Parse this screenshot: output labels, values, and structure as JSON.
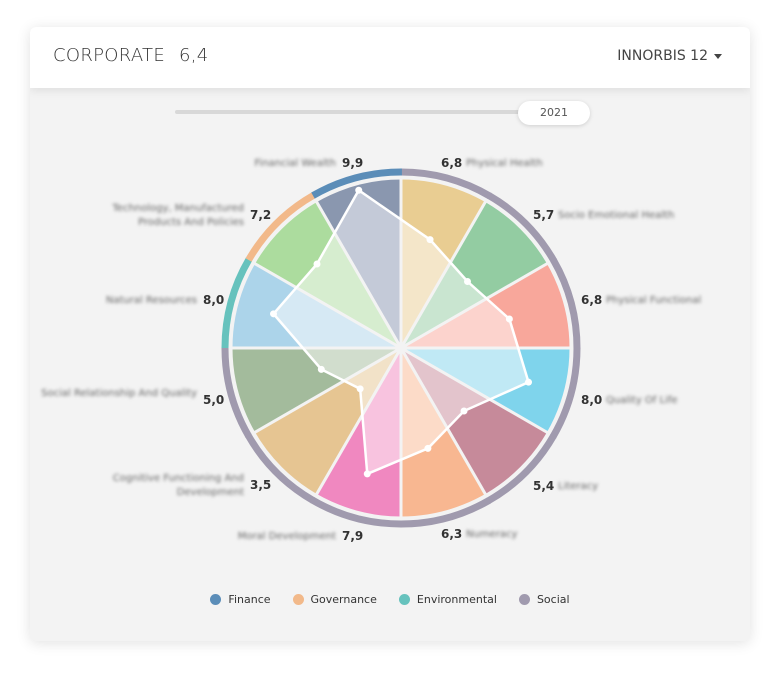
{
  "header": {
    "title": "CORPORATE",
    "score": "6,4",
    "dropdown": "INNORBIS 12"
  },
  "slider": {
    "year": "2021",
    "position": 1.0
  },
  "chart_data": {
    "type": "polar-radar",
    "scale_max": 10,
    "categories": [
      "Physical Health",
      "Socio Emotional Health",
      "Physical Functional",
      "Quality Of Life",
      "Literacy",
      "Numeracy",
      "Moral Development",
      "Cognitive Functioning And Development",
      "Social Relationship And Quality",
      "Natural Resources",
      "Technology, Manufactured Products And Policies",
      "Financial Wealth"
    ],
    "value_labels": [
      "6,8",
      "5,7",
      "6,8",
      "8,0",
      "5,4",
      "6,3",
      "7,9",
      "3,5",
      "5,0",
      "8,0",
      "7,2",
      "9,9"
    ],
    "values": [
      6.8,
      5.7,
      6.8,
      8.0,
      5.4,
      6.3,
      7.9,
      3.5,
      5.0,
      8.0,
      7.2,
      9.9
    ],
    "groups": [
      "Social",
      "Social",
      "Social",
      "Social",
      "Social",
      "Social",
      "Social",
      "Social",
      "Social",
      "Environmental",
      "Governance",
      "Finance"
    ],
    "colors_dark": [
      "#e9cd92",
      "#93cca2",
      "#f8a79b",
      "#7fd4ec",
      "#c68a9a",
      "#f8b791",
      "#f088c0",
      "#e6c592",
      "#a3bb9c",
      "#acd4ea",
      "#acdc9e",
      "#8a97af"
    ],
    "colors_light": [
      "#f4e6c9",
      "#c9e5d0",
      "#fcd3cd",
      "#c0e9f5",
      "#e3c4cc",
      "#fcdbc8",
      "#f8c3df",
      "#f2e2c8",
      "#d1ddcd",
      "#d6e9f4",
      "#d6edcf",
      "#c4cad8"
    ],
    "legend": [
      {
        "name": "Finance",
        "color": "#5b8db8"
      },
      {
        "name": "Governance",
        "color": "#f2b98a"
      },
      {
        "name": "Environmental",
        "color": "#66c2bd"
      },
      {
        "name": "Social",
        "color": "#a09aae"
      }
    ],
    "legend_position": "bottom"
  }
}
